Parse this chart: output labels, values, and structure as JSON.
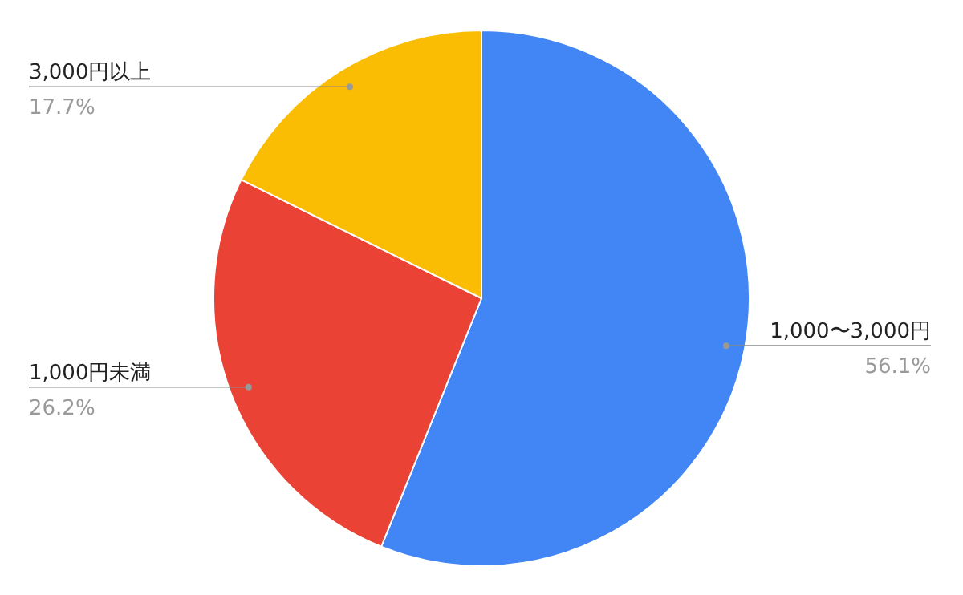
{
  "chart_data": {
    "type": "pie",
    "categories": [
      "1,000〜3,000円",
      "1,000円未満",
      "3,000円以上"
    ],
    "values": [
      56.1,
      26.2,
      17.7
    ],
    "colors": [
      "#4285f4",
      "#ea4335",
      "#fbbc04"
    ],
    "value_labels": [
      "56.1%",
      "26.2%",
      "17.7%"
    ],
    "legend": false
  }
}
